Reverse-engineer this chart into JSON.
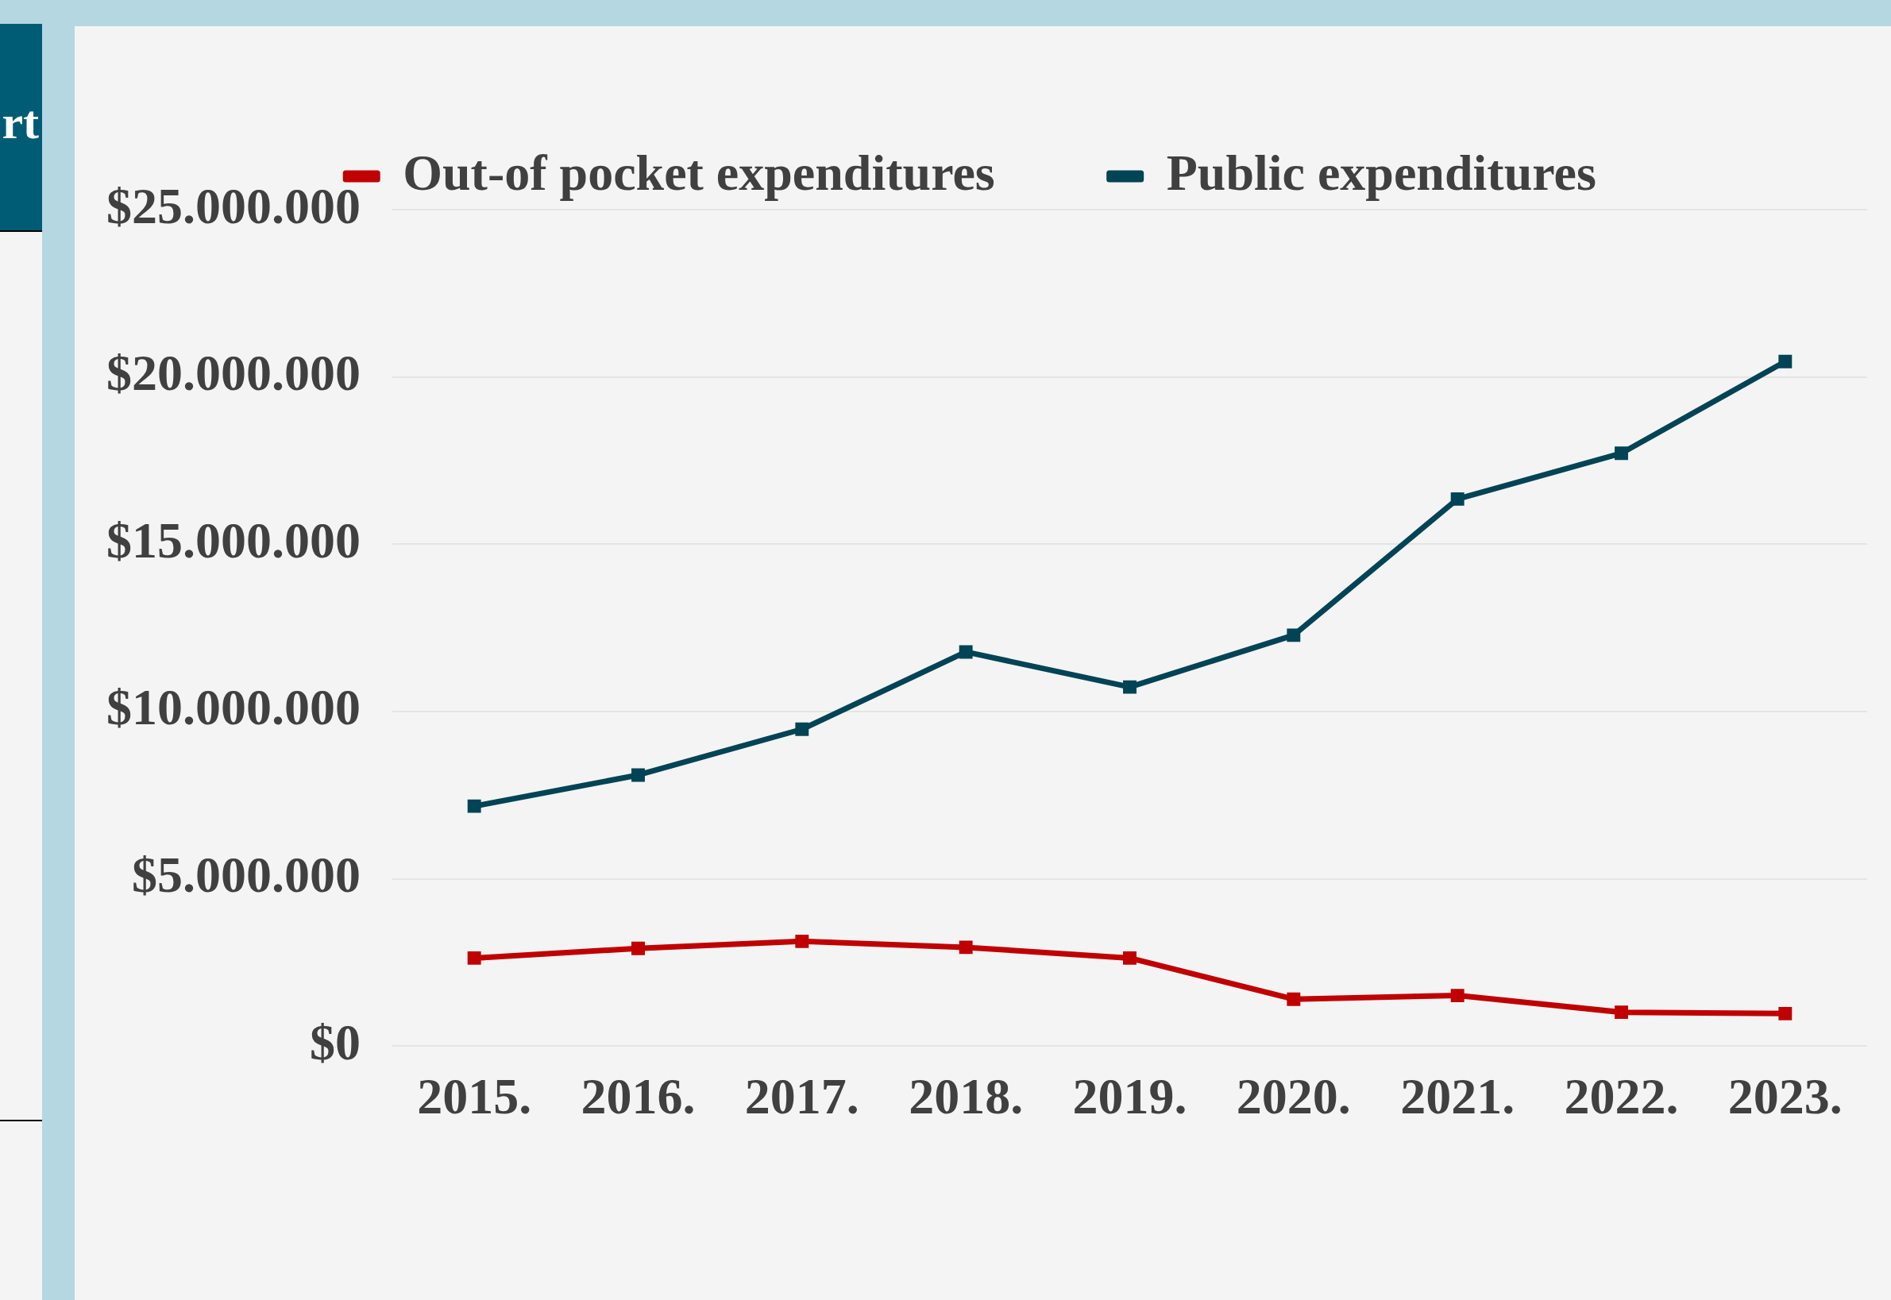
{
  "chart_data": {
    "type": "line",
    "categories": [
      "2015.",
      "2016.",
      "2017.",
      "2018.",
      "2019.",
      "2020.",
      "2021.",
      "2022.",
      "2023."
    ],
    "series": [
      {
        "name": "Out-of pocket expenditures",
        "color": "#c00000",
        "values": [
          2630000,
          2920000,
          3130000,
          2950000,
          2630000,
          1400000,
          1510000,
          1010000,
          970000
        ]
      },
      {
        "name": "Public expenditures",
        "color": "#004455",
        "values": [
          7170000,
          8100000,
          9470000,
          11780000,
          10730000,
          12280000,
          16350000,
          17720000,
          20460000
        ]
      }
    ],
    "ylim": [
      0,
      25000000
    ],
    "yticks": [
      {
        "value": 0,
        "label": "$0"
      },
      {
        "value": 5000000,
        "label": "$5.000.000"
      },
      {
        "value": 10000000,
        "label": "$10.000.000"
      },
      {
        "value": 15000000,
        "label": "$15.000.000"
      },
      {
        "value": 20000000,
        "label": "$20.000.000"
      },
      {
        "value": 25000000,
        "label": "$25.000.000"
      }
    ],
    "grid": "y",
    "legend": "top",
    "marker": "square",
    "line_style": "solid",
    "annotations": [
      "rt"
    ]
  }
}
